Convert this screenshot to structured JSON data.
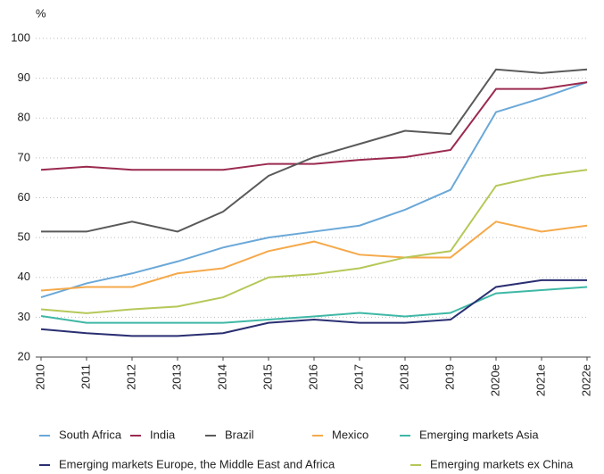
{
  "chart_data": {
    "type": "line",
    "y_label": "%",
    "categories": [
      "2010",
      "2011",
      "2012",
      "2013",
      "2014",
      "2015",
      "2016",
      "2017",
      "2018",
      "2019",
      "2020e",
      "2021e",
      "2022e"
    ],
    "ylim": [
      20,
      100
    ],
    "yticks": [
      20,
      30,
      40,
      50,
      60,
      70,
      80,
      90,
      100
    ],
    "grid": true,
    "series": [
      {
        "name": "South Africa",
        "color": "#6aa8d8",
        "values": [
          35,
          38.5,
          41,
          44,
          47.5,
          50,
          51.5,
          53,
          57,
          62,
          81.5,
          85,
          89
        ]
      },
      {
        "name": "India",
        "color": "#9b2a4f",
        "values": [
          67,
          67.8,
          67,
          67,
          67,
          68.5,
          68.5,
          69.5,
          70.2,
          72,
          87.3,
          87.3,
          89
        ]
      },
      {
        "name": "Brazil",
        "color": "#5a5a5a",
        "values": [
          51.5,
          51.5,
          54,
          51.5,
          56.5,
          65.5,
          70.2,
          73.5,
          76.8,
          76,
          92.2,
          91.3,
          92.2
        ]
      },
      {
        "name": "Mexico",
        "color": "#f5a94a",
        "values": [
          36.7,
          37.6,
          37.6,
          41,
          42.3,
          46.6,
          49,
          45.7,
          45,
          45,
          54,
          51.5,
          53
        ]
      },
      {
        "name": "Emerging markets Asia",
        "color": "#3fb8a6",
        "values": [
          30.3,
          28.6,
          28.6,
          28.6,
          28.6,
          29.4,
          30.2,
          31.1,
          30.2,
          31.1,
          36,
          36.8,
          37.6
        ]
      },
      {
        "name": "Emerging markets Europe, the Middle East and Africa",
        "color": "#2a2f72",
        "values": [
          27,
          26,
          25.3,
          25.3,
          26,
          28.6,
          29.4,
          28.6,
          28.6,
          29.4,
          37.6,
          39.3,
          39.3
        ]
      },
      {
        "name": "Emerging markets ex China",
        "color": "#b5c858",
        "values": [
          32,
          31,
          32,
          32.7,
          35,
          40,
          40.8,
          42.3,
          45,
          46.6,
          63,
          65.5,
          67
        ]
      }
    ]
  }
}
